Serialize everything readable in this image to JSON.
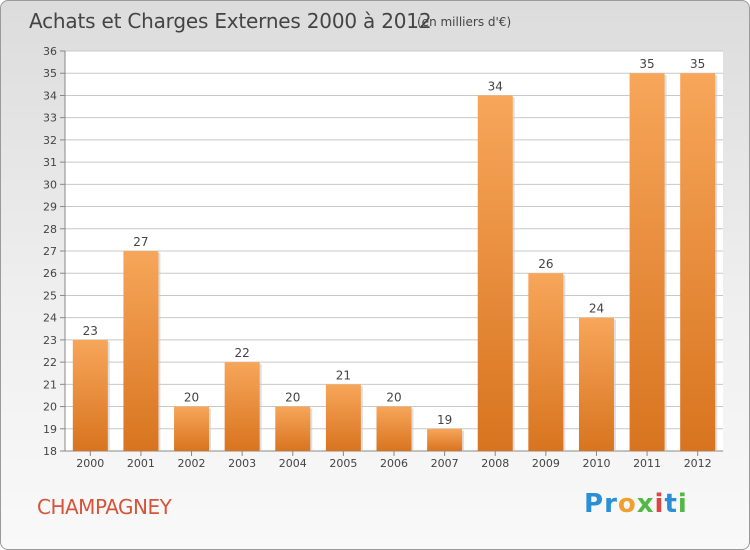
{
  "header": {
    "title": "Achats et Charges Externes 2000 à 2012",
    "subtitle": "(en milliers d'€)"
  },
  "footer": {
    "commune": "CHAMPAGNEY",
    "logo_letters": [
      {
        "char": "P",
        "color": "#2a8fd6"
      },
      {
        "char": "r",
        "color": "#2a8fd6"
      },
      {
        "char": "o",
        "color": "#f0a030"
      },
      {
        "char": "x",
        "color": "#52b845"
      },
      {
        "char": "i",
        "color": "#e04545"
      },
      {
        "char": "t",
        "color": "#2a8fd6"
      },
      {
        "char": "i",
        "color": "#52b845"
      }
    ]
  },
  "chart_data": {
    "type": "bar",
    "categories": [
      "2000",
      "2001",
      "2002",
      "2003",
      "2004",
      "2005",
      "2006",
      "2007",
      "2008",
      "2009",
      "2010",
      "2011",
      "2012"
    ],
    "values": [
      23,
      27,
      20,
      22,
      20,
      21,
      20,
      19,
      34,
      26,
      24,
      35,
      35
    ],
    "ylim": [
      18,
      36
    ],
    "yticks": [
      18,
      19,
      20,
      21,
      22,
      23,
      24,
      25,
      26,
      27,
      28,
      29,
      30,
      31,
      32,
      33,
      34,
      35,
      36
    ],
    "grid": true,
    "bar_color_top": "#f7a65a",
    "bar_color_bottom": "#d8741f",
    "grid_color": "#c8c8c8"
  }
}
